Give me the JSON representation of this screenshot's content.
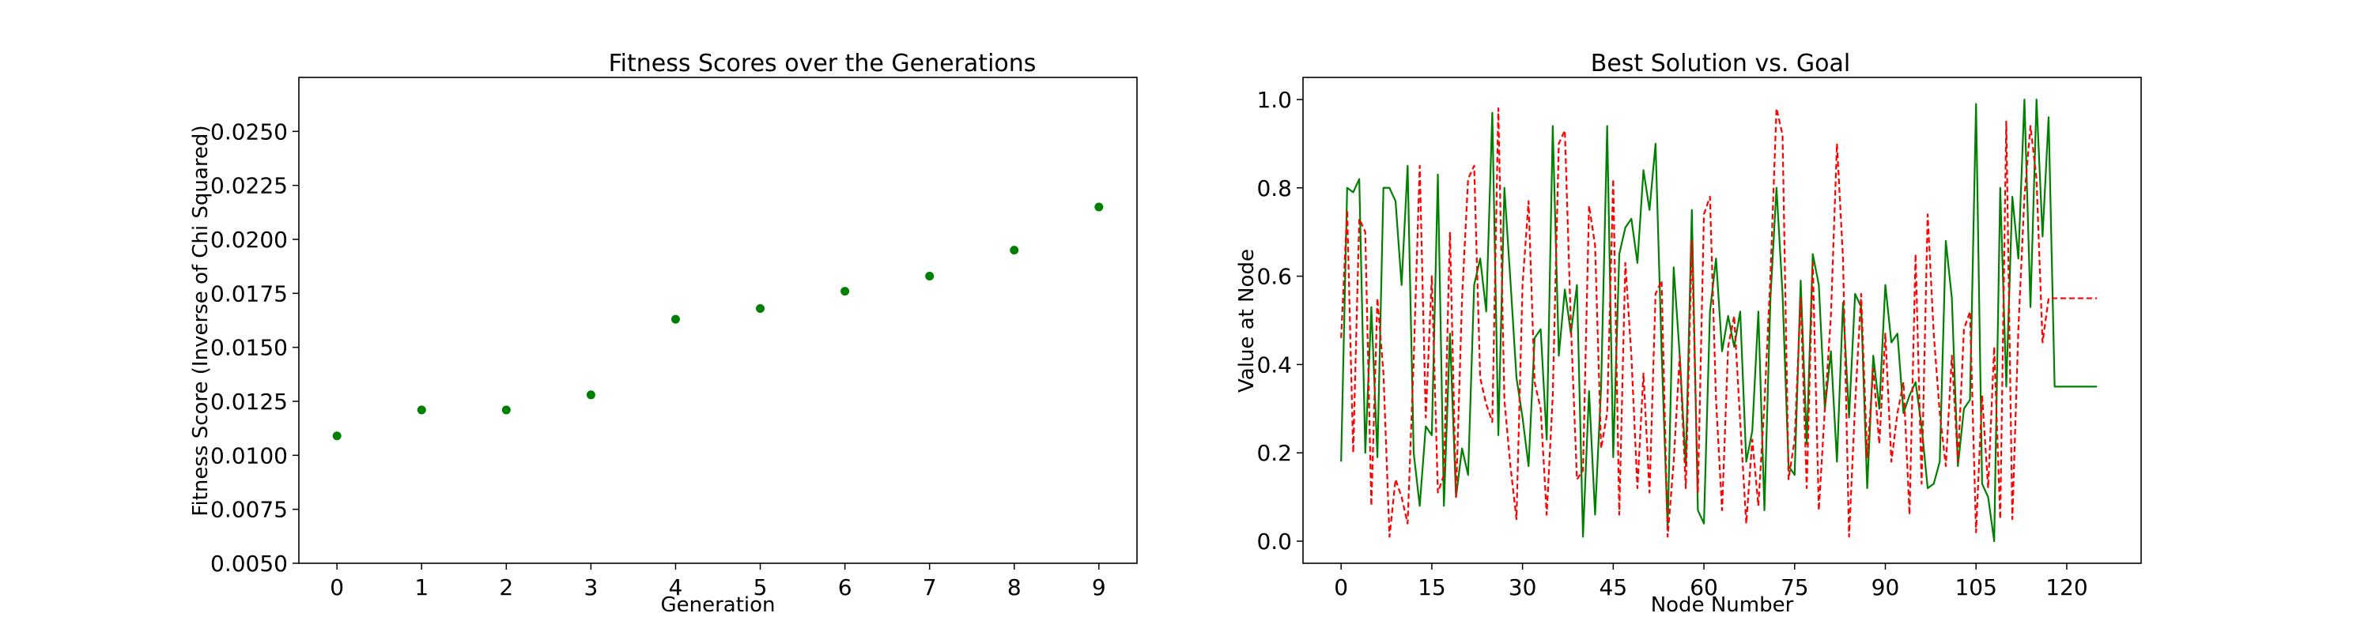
{
  "chart_data": [
    {
      "type": "scatter",
      "title": "Fitness Scores over the Generations",
      "xlabel": "Generation",
      "ylabel": "Fitness Score (Inverse of Chi Squared)",
      "xlim": [
        -0.45,
        9.45
      ],
      "ylim": [
        0.005,
        0.0275
      ],
      "xticks": [
        0,
        1,
        2,
        3,
        4,
        5,
        6,
        7,
        8,
        9
      ],
      "yticks": [
        0.005,
        0.0075,
        0.01,
        0.0125,
        0.015,
        0.0175,
        0.02,
        0.0225,
        0.025
      ],
      "ytick_labels": [
        "0.0050",
        "0.0075",
        "0.0100",
        "0.0125",
        "0.0150",
        "0.0175",
        "0.0200",
        "0.0225",
        "0.0250"
      ],
      "x": [
        0,
        1,
        2,
        3,
        4,
        5,
        6,
        7,
        8,
        9
      ],
      "y": [
        0.0109,
        0.0121,
        0.0121,
        0.0128,
        0.0163,
        0.0168,
        0.0176,
        0.0183,
        0.0195,
        0.0215
      ],
      "color": "#008000",
      "grid": false
    },
    {
      "type": "line",
      "title": "Best Solution vs. Goal",
      "xlabel": "Node Number",
      "ylabel": "Value at Node",
      "xlim": [
        -6.3,
        132.3
      ],
      "ylim": [
        -0.05,
        1.05
      ],
      "xticks": [
        0,
        15,
        30,
        45,
        60,
        75,
        90,
        105,
        120
      ],
      "yticks": [
        0.0,
        0.2,
        0.4,
        0.6,
        0.8,
        1.0
      ],
      "ytick_labels": [
        "0.0",
        "0.2",
        "0.4",
        "0.6",
        "0.8",
        "1.0"
      ],
      "grid": false,
      "series": [
        {
          "style": "solid",
          "color": "#008000",
          "values": [
            0.18,
            0.8,
            0.79,
            0.82,
            0.2,
            0.53,
            0.19,
            0.8,
            0.8,
            0.77,
            0.58,
            0.85,
            0.2,
            0.08,
            0.26,
            0.24,
            0.83,
            0.08,
            0.47,
            0.1,
            0.21,
            0.15,
            0.58,
            0.64,
            0.52,
            0.97,
            0.24,
            0.8,
            0.59,
            0.37,
            0.28,
            0.17,
            0.46,
            0.48,
            0.23,
            0.94,
            0.42,
            0.57,
            0.47,
            0.58,
            0.01,
            0.34,
            0.06,
            0.35,
            0.94,
            0.19,
            0.65,
            0.71,
            0.73,
            0.63,
            0.84,
            0.75,
            0.9,
            0.43,
            0.03,
            0.62,
            0.42,
            0.17,
            0.75,
            0.07,
            0.04,
            0.52,
            0.64,
            0.43,
            0.51,
            0.44,
            0.52,
            0.18,
            0.25,
            0.52,
            0.07,
            0.55,
            0.8,
            0.56,
            0.17,
            0.15,
            0.59,
            0.22,
            0.65,
            0.58,
            0.3,
            0.43,
            0.18,
            0.54,
            0.28,
            0.56,
            0.53,
            0.12,
            0.42,
            0.3,
            0.58,
            0.45,
            0.47,
            0.29,
            0.33,
            0.36,
            0.26,
            0.12,
            0.13,
            0.18,
            0.68,
            0.55,
            0.17,
            0.3,
            0.32,
            0.99,
            0.13,
            0.1,
            0.0,
            0.8,
            0.35,
            0.78,
            0.64,
            1.0,
            0.53,
            1.0,
            0.69,
            0.96,
            0.35,
            0.35,
            0.35,
            0.35,
            0.35,
            0.35,
            0.35,
            0.35
          ]
        },
        {
          "style": "dashed",
          "color": "#ff0000",
          "values": [
            0.46,
            0.75,
            0.2,
            0.73,
            0.7,
            0.08,
            0.55,
            0.38,
            0.01,
            0.14,
            0.1,
            0.04,
            0.41,
            0.85,
            0.28,
            0.6,
            0.11,
            0.15,
            0.7,
            0.1,
            0.55,
            0.82,
            0.85,
            0.37,
            0.31,
            0.27,
            0.98,
            0.32,
            0.17,
            0.05,
            0.58,
            0.77,
            0.36,
            0.3,
            0.06,
            0.33,
            0.9,
            0.93,
            0.49,
            0.14,
            0.16,
            0.76,
            0.67,
            0.21,
            0.29,
            0.82,
            0.06,
            0.63,
            0.42,
            0.12,
            0.38,
            0.11,
            0.56,
            0.59,
            0.01,
            0.18,
            0.42,
            0.12,
            0.68,
            0.11,
            0.74,
            0.78,
            0.32,
            0.07,
            0.44,
            0.51,
            0.27,
            0.04,
            0.23,
            0.08,
            0.31,
            0.6,
            0.98,
            0.92,
            0.14,
            0.23,
            0.55,
            0.12,
            0.63,
            0.07,
            0.3,
            0.51,
            0.9,
            0.64,
            0.01,
            0.31,
            0.56,
            0.19,
            0.39,
            0.22,
            0.47,
            0.18,
            0.29,
            0.36,
            0.06,
            0.65,
            0.13,
            0.74,
            0.47,
            0.29,
            0.17,
            0.42,
            0.18,
            0.48,
            0.52,
            0.02,
            0.33,
            0.12,
            0.44,
            0.05,
            0.95,
            0.05,
            0.48,
            0.78,
            0.94,
            0.82,
            0.45,
            0.55,
            0.55,
            0.55,
            0.55,
            0.55,
            0.55,
            0.55,
            0.55,
            0.55
          ]
        }
      ]
    }
  ]
}
